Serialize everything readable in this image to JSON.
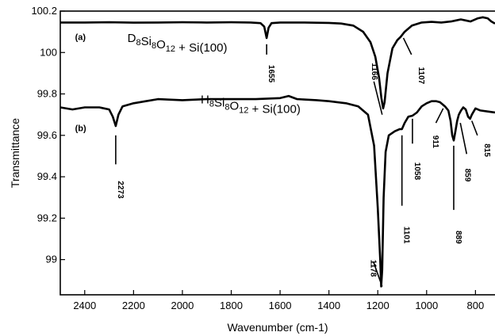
{
  "chart_data": {
    "type": "line",
    "title": "",
    "xlabel": "Wavenumber (cm-1)",
    "ylabel": "Transmittance",
    "xlim": [
      2500,
      720
    ],
    "ylim": [
      98.83,
      100.2
    ],
    "x_reversed": true,
    "x_ticks": [
      2400,
      2200,
      2000,
      1800,
      1600,
      1400,
      1200,
      1000,
      800
    ],
    "y_ticks": [
      {
        "value": 99,
        "label": "99"
      },
      {
        "value": 99.2,
        "label": "99.2"
      },
      {
        "value": 99.4,
        "label": "99.4"
      },
      {
        "value": 99.6,
        "label": "99.6"
      },
      {
        "value": 99.8,
        "label": "99.8"
      },
      {
        "value": 100,
        "label": "100"
      },
      {
        "value": 100.2,
        "label": "100.2"
      }
    ],
    "grid": false,
    "legend": "none",
    "series": [
      {
        "panel": "(a)",
        "label_main": "D",
        "label_parts": [
          {
            "t": "D"
          },
          {
            "t": "8",
            "sub": true
          },
          {
            "t": "Si"
          },
          {
            "t": "8",
            "sub": true
          },
          {
            "t": "O"
          },
          {
            "t": "12",
            "sub": true
          },
          {
            "t": " + Si(100)"
          }
        ],
        "color": "#000000",
        "points": [
          [
            2500,
            100.145
          ],
          [
            2400,
            100.145
          ],
          [
            2300,
            100.146
          ],
          [
            2200,
            100.144
          ],
          [
            2100,
            100.145
          ],
          [
            2000,
            100.146
          ],
          [
            1900,
            100.145
          ],
          [
            1800,
            100.146
          ],
          [
            1720,
            100.145
          ],
          [
            1680,
            100.142
          ],
          [
            1665,
            100.125
          ],
          [
            1655,
            100.07
          ],
          [
            1647,
            100.12
          ],
          [
            1635,
            100.142
          ],
          [
            1600,
            100.145
          ],
          [
            1500,
            100.145
          ],
          [
            1400,
            100.143
          ],
          [
            1350,
            100.14
          ],
          [
            1300,
            100.13
          ],
          [
            1260,
            100.1
          ],
          [
            1230,
            100.05
          ],
          [
            1210,
            99.98
          ],
          [
            1195,
            99.88
          ],
          [
            1185,
            99.78
          ],
          [
            1178,
            99.73
          ],
          [
            1172,
            99.76
          ],
          [
            1160,
            99.9
          ],
          [
            1140,
            100.02
          ],
          [
            1120,
            100.06
          ],
          [
            1107,
            100.075
          ],
          [
            1090,
            100.1
          ],
          [
            1060,
            100.13
          ],
          [
            1020,
            100.145
          ],
          [
            980,
            100.148
          ],
          [
            940,
            100.145
          ],
          [
            900,
            100.15
          ],
          [
            880,
            100.155
          ],
          [
            860,
            100.16
          ],
          [
            840,
            100.155
          ],
          [
            820,
            100.15
          ],
          [
            790,
            100.165
          ],
          [
            770,
            100.17
          ],
          [
            750,
            100.165
          ],
          [
            735,
            100.15
          ],
          [
            720,
            100.14
          ]
        ]
      },
      {
        "panel": "(b)",
        "label_main": "H",
        "label_parts": [
          {
            "t": "H"
          },
          {
            "t": "8",
            "sub": true
          },
          {
            "t": "Si"
          },
          {
            "t": "8",
            "sub": true
          },
          {
            "t": "O"
          },
          {
            "t": "12",
            "sub": true
          },
          {
            "t": " + Si(100)"
          }
        ],
        "color": "#000000",
        "points": [
          [
            2500,
            99.735
          ],
          [
            2450,
            99.725
          ],
          [
            2400,
            99.735
          ],
          [
            2340,
            99.735
          ],
          [
            2300,
            99.725
          ],
          [
            2285,
            99.69
          ],
          [
            2273,
            99.645
          ],
          [
            2262,
            99.7
          ],
          [
            2245,
            99.74
          ],
          [
            2200,
            99.755
          ],
          [
            2150,
            99.765
          ],
          [
            2100,
            99.775
          ],
          [
            2000,
            99.77
          ],
          [
            1900,
            99.775
          ],
          [
            1800,
            99.775
          ],
          [
            1700,
            99.775
          ],
          [
            1600,
            99.78
          ],
          [
            1565,
            99.79
          ],
          [
            1530,
            99.775
          ],
          [
            1450,
            99.77
          ],
          [
            1400,
            99.765
          ],
          [
            1330,
            99.755
          ],
          [
            1280,
            99.74
          ],
          [
            1240,
            99.7
          ],
          [
            1215,
            99.55
          ],
          [
            1200,
            99.25
          ],
          [
            1190,
            99.0
          ],
          [
            1186,
            98.87
          ],
          [
            1182,
            98.95
          ],
          [
            1176,
            99.3
          ],
          [
            1168,
            99.52
          ],
          [
            1155,
            99.6
          ],
          [
            1130,
            99.62
          ],
          [
            1110,
            99.63
          ],
          [
            1101,
            99.63
          ],
          [
            1090,
            99.66
          ],
          [
            1075,
            99.69
          ],
          [
            1058,
            99.695
          ],
          [
            1040,
            99.71
          ],
          [
            1020,
            99.74
          ],
          [
            1000,
            99.755
          ],
          [
            980,
            99.765
          ],
          [
            960,
            99.765
          ],
          [
            945,
            99.76
          ],
          [
            925,
            99.74
          ],
          [
            911,
            99.72
          ],
          [
            902,
            99.67
          ],
          [
            895,
            99.6
          ],
          [
            889,
            99.575
          ],
          [
            882,
            99.62
          ],
          [
            875,
            99.67
          ],
          [
            868,
            99.7
          ],
          [
            859,
            99.72
          ],
          [
            850,
            99.735
          ],
          [
            840,
            99.725
          ],
          [
            830,
            99.69
          ],
          [
            822,
            99.68
          ],
          [
            815,
            99.7
          ],
          [
            800,
            99.73
          ],
          [
            780,
            99.72
          ],
          [
            750,
            99.715
          ],
          [
            720,
            99.71
          ]
        ]
      }
    ],
    "annotations": [
      {
        "text": "1655",
        "x": 1655,
        "line_y": [
          100.04,
          99.99
        ],
        "label_y": 99.94,
        "rotate": 90
      },
      {
        "text": "1166",
        "x": 1216,
        "x2": 1182,
        "line_y": [
          99.86,
          99.7
        ],
        "label_y": 99.95,
        "label_x": 1234,
        "rotate": 90
      },
      {
        "text": "1107",
        "x": 1095,
        "x2": 1062,
        "line_y": [
          100.07,
          99.99
        ],
        "label_y": 99.93,
        "label_x": 1042,
        "rotate": 90
      },
      {
        "text": "2273",
        "x": 2273,
        "line_y": [
          99.6,
          99.46
        ],
        "label_y": 99.38,
        "rotate": 90
      },
      {
        "text": "1178",
        "x": 1218,
        "x2": 1182,
        "line_y": [
          98.99,
          98.87
        ],
        "label_y": 99.0,
        "label_x": 1238,
        "rotate": 90
      },
      {
        "text": "1101",
        "x": 1101,
        "line_y": [
          99.6,
          99.26
        ],
        "label_y": 99.16,
        "rotate": 90
      },
      {
        "text": "1058",
        "x": 1058,
        "line_y": [
          99.68,
          99.56
        ],
        "label_y": 99.47,
        "rotate": 90
      },
      {
        "text": "911",
        "x": 962,
        "x2": 932,
        "line_y": [
          99.66,
          99.73
        ],
        "label_y": 99.6,
        "label_x": 983,
        "rotate": 90
      },
      {
        "text": "889",
        "x": 889,
        "line_y": [
          99.55,
          99.24
        ],
        "label_y": 99.14,
        "rotate": 90
      },
      {
        "text": "859",
        "x": 862,
        "x2": 836,
        "line_y": [
          99.66,
          99.51
        ],
        "label_y": 99.44,
        "label_x": 851,
        "rotate": 90
      },
      {
        "text": "815",
        "x": 815,
        "x2": 792,
        "line_y": [
          99.67,
          99.6
        ],
        "label_y": 99.56,
        "label_x": 772,
        "rotate": 90
      }
    ]
  }
}
